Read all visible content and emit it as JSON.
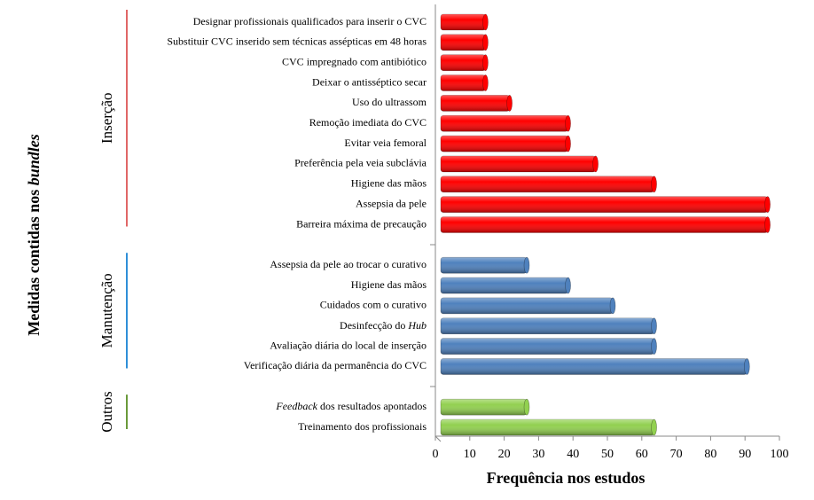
{
  "chart_data": {
    "type": "bar",
    "orientation": "horizontal",
    "x_label": "Frequência nos estudos",
    "y_label": [
      "Medidas contidas nos ",
      {
        "text": "bundles",
        "italic": true
      }
    ],
    "xlim": [
      0,
      100
    ],
    "xticks": [
      0,
      10,
      20,
      30,
      40,
      50,
      60,
      70,
      80,
      90,
      100
    ],
    "groups": [
      {
        "name": "Inserção",
        "color": "#ff0000",
        "line_color": "#e06666",
        "categories": [
          "Designar profissionais qualificados para inserir o CVC",
          "Substituir CVC inserido sem técnicas assépticas em 48 horas",
          "CVC impregnado com antibiótico",
          "Deixar o antisséptico secar",
          "Uso do ultrassom",
          "Remoção imediata do CVC",
          "Evitar veia femoral",
          "Preferência pela veia subclávia",
          "Higiene das mãos",
          "Assepsia da pele",
          "Barreira máxima de precaução"
        ],
        "values": [
          13,
          13,
          13,
          13,
          20,
          37,
          37,
          45,
          62,
          95,
          95
        ]
      },
      {
        "name": "Manutenção",
        "color": "#4f81bd",
        "line_color": "#2f8fd8",
        "categories": [
          "Assepsia da pele ao trocar o curativo",
          "Higiene das mãos",
          "Cuidados com o curativo",
          [
            "Desinfecção do ",
            {
              "text": "Hub",
              "italic": true
            }
          ],
          "Avaliação diária do local de inserção",
          "Verificação diária da permanência do CVC"
        ],
        "values": [
          25,
          37,
          50,
          62,
          62,
          89
        ]
      },
      {
        "name": "Outros",
        "color": "#92d050",
        "line_color": "#6a9a3a",
        "categories": [
          [
            {
              "text": "Feedback",
              "italic": true
            },
            " dos resultados apontados"
          ],
          "Treinamento dos profissionais"
        ],
        "values": [
          25,
          62
        ]
      }
    ]
  }
}
